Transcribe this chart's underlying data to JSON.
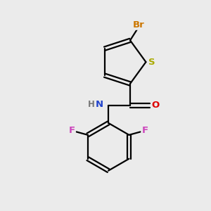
{
  "bg_color": "#ebebeb",
  "bond_color": "#000000",
  "bond_width": 1.6,
  "atom_labels": {
    "Br": {
      "color": "#cc7700",
      "fontsize": 9.5
    },
    "S": {
      "color": "#aaaa00",
      "fontsize": 9.5
    },
    "N": {
      "color": "#2244cc",
      "fontsize": 9.5
    },
    "H": {
      "color": "#777777",
      "fontsize": 8.5
    },
    "O": {
      "color": "#dd0000",
      "fontsize": 9.5
    },
    "F": {
      "color": "#cc44bb",
      "fontsize": 9.5
    }
  },
  "fig_width": 3.0,
  "fig_height": 3.0,
  "dpi": 100,
  "xlim": [
    0,
    10
  ],
  "ylim": [
    0,
    10
  ]
}
